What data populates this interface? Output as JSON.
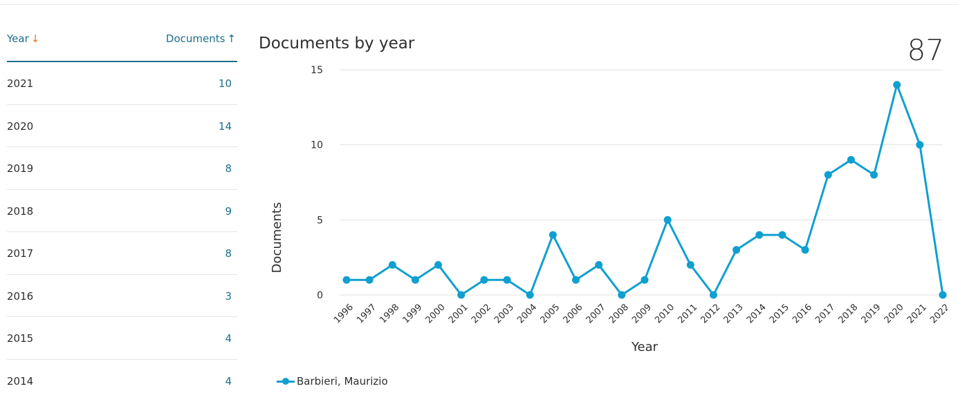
{
  "table": {
    "year_header": "Year",
    "year_sort_icon": "arrow-down-icon",
    "docs_header": "Documents",
    "docs_sort_icon": "arrow-up-icon",
    "rows": [
      {
        "year": "2021",
        "documents": "10"
      },
      {
        "year": "2020",
        "documents": "14"
      },
      {
        "year": "2019",
        "documents": "8"
      },
      {
        "year": "2018",
        "documents": "9"
      },
      {
        "year": "2017",
        "documents": "8"
      },
      {
        "year": "2016",
        "documents": "3"
      },
      {
        "year": "2015",
        "documents": "4"
      },
      {
        "year": "2014",
        "documents": "4"
      }
    ]
  },
  "chart": {
    "total": "87"
  },
  "colors": {
    "series": "#0f9fd0",
    "link": "#1a6f8a",
    "sort_accent": "#e9711c"
  },
  "chart_data": {
    "type": "line",
    "title": "Documents by year",
    "xlabel": "Year",
    "ylabel": "Documents",
    "ylim": [
      0,
      15
    ],
    "yticks": [
      0,
      5,
      10,
      15
    ],
    "grid": true,
    "legend_position": "bottom-left",
    "x": [
      "1996",
      "1997",
      "1998",
      "1999",
      "2000",
      "2001",
      "2002",
      "2003",
      "2004",
      "2005",
      "2006",
      "2007",
      "2008",
      "2009",
      "2010",
      "2011",
      "2012",
      "2013",
      "2014",
      "2015",
      "2016",
      "2017",
      "2018",
      "2019",
      "2020",
      "2021",
      "2022"
    ],
    "series": [
      {
        "name": "Barbieri, Maurizio",
        "values": [
          1,
          1,
          2,
          1,
          2,
          0,
          1,
          1,
          0,
          4,
          1,
          2,
          0,
          1,
          5,
          2,
          0,
          3,
          4,
          4,
          3,
          8,
          9,
          8,
          14,
          10,
          0
        ]
      }
    ]
  }
}
